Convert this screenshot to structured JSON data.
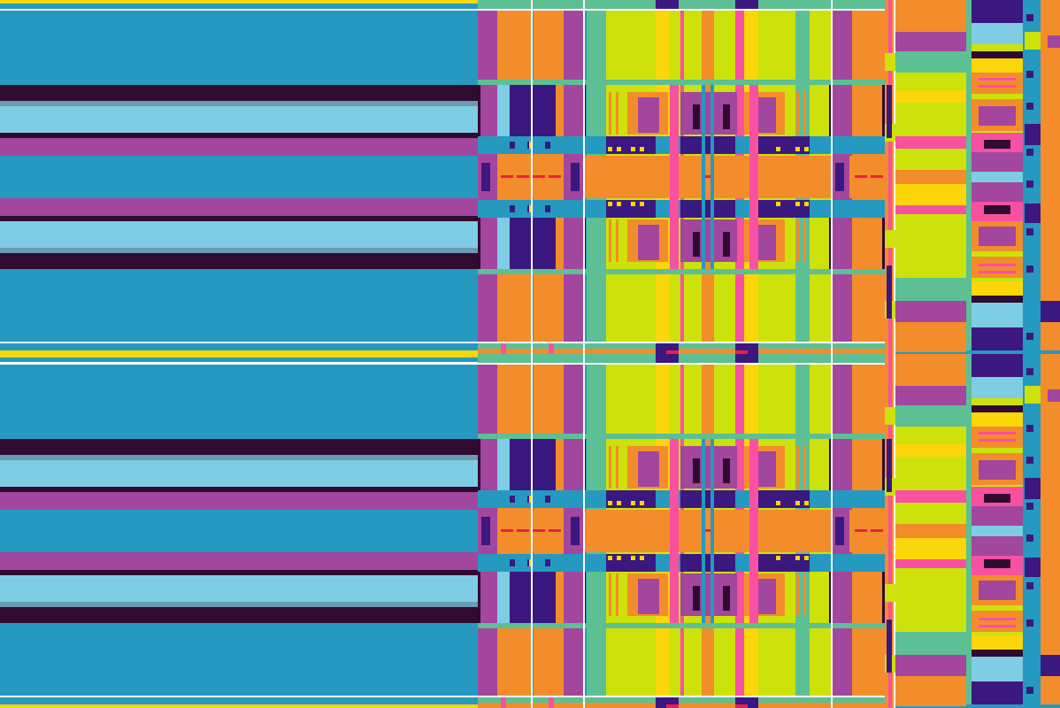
{
  "palette": {
    "teal": "#2699c0",
    "sky": "#7fcde4",
    "slate": "#6a9bb0",
    "plum": "#2f0b2f",
    "magenta": "#a2469e",
    "orange": "#f38d2c",
    "lime": "#cde20a",
    "mint": "#5dbf94",
    "yellow": "#fbd60a",
    "pink": "#f851a1",
    "indigo": "#3b1880",
    "red": "#ea1f48",
    "white": "#ffffff"
  },
  "pattern": {
    "description_tags": [
      "striped-tile",
      "repeating-plaid"
    ],
    "tile_rows": 2,
    "vertical_mirror": true
  }
}
